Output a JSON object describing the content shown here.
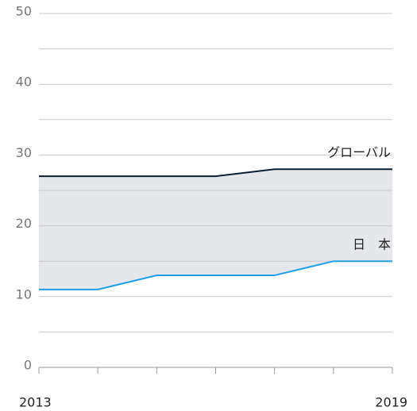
{
  "chart_data": {
    "type": "line",
    "x": [
      2013,
      2014,
      2015,
      2016,
      2017,
      2018,
      2019
    ],
    "xlim": [
      2013,
      2019
    ],
    "xticks": [
      2013,
      2019
    ],
    "minor_xticks": [
      2014,
      2015,
      2016,
      2017,
      2018
    ],
    "ylim": [
      0,
      50
    ],
    "yticks": [
      0,
      10,
      20,
      30,
      40,
      50
    ],
    "minor_yticks": [
      5,
      15,
      25,
      35,
      45
    ],
    "grid": true,
    "fill_between": "#e6e7ea",
    "series": [
      {
        "name": "グローバル",
        "color": "#0d1f33",
        "values": [
          27,
          27,
          27,
          27,
          28,
          28,
          28
        ]
      },
      {
        "name": "日　本",
        "color": "#1fa0e6",
        "values": [
          11,
          11,
          13,
          13,
          13,
          15,
          15
        ]
      }
    ]
  }
}
